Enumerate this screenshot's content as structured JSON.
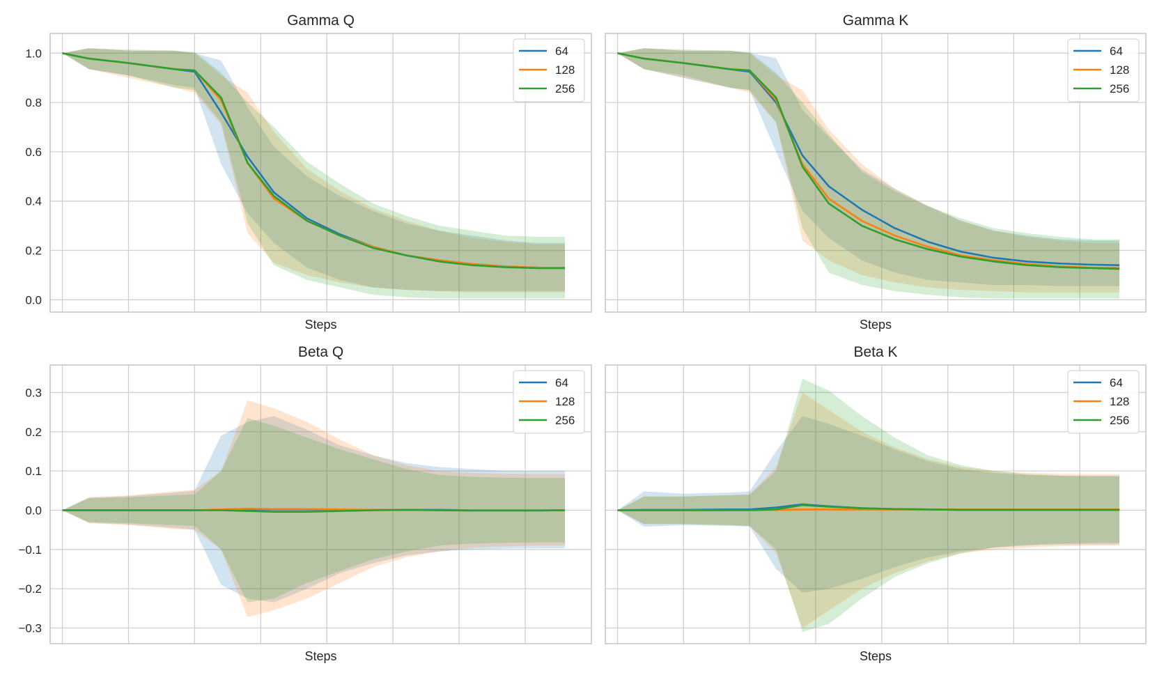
{
  "colors": {
    "s64": "#1f77b4",
    "s128": "#ff7f0e",
    "s256": "#2ca02c",
    "grid": "#d0d0d0",
    "frame": "#c4c4c4"
  },
  "chart_data": [
    {
      "type": "line",
      "title": "Gamma Q",
      "xlabel": "Steps",
      "ylabel": "",
      "ylim": [
        -0.05,
        1.08
      ],
      "yticks": [
        0.0,
        0.2,
        0.4,
        0.6,
        0.8,
        1.0
      ],
      "ytick_labels": [
        "0.0",
        "0.2",
        "0.4",
        "0.6",
        "0.8",
        "1.0"
      ],
      "xlim": [
        -0.37,
        16.0
      ],
      "x": [
        0,
        0.8,
        2,
        3.4,
        4,
        4.8,
        5.6,
        6.4,
        7.4,
        8.4,
        9.4,
        10.4,
        11.4,
        12.4,
        13.4,
        14.4,
        15.2
      ],
      "legend": [
        "64",
        "128",
        "256"
      ],
      "legend_position": "top-right",
      "series": [
        {
          "name": "64",
          "values": [
            1.0,
            0.978,
            0.96,
            0.935,
            0.925,
            0.76,
            0.58,
            0.435,
            0.33,
            0.265,
            0.215,
            0.18,
            0.16,
            0.145,
            0.135,
            0.13,
            0.13
          ],
          "upper": [
            1.0,
            1.02,
            1.01,
            1.01,
            1.0,
            0.97,
            0.78,
            0.62,
            0.5,
            0.42,
            0.36,
            0.31,
            0.28,
            0.26,
            0.24,
            0.23,
            0.23
          ],
          "lower": [
            1.0,
            0.935,
            0.91,
            0.87,
            0.86,
            0.55,
            0.35,
            0.23,
            0.13,
            0.08,
            0.05,
            0.04,
            0.035,
            0.035,
            0.035,
            0.035,
            0.035
          ]
        },
        {
          "name": "128",
          "values": [
            1.0,
            0.978,
            0.96,
            0.935,
            0.93,
            0.81,
            0.555,
            0.41,
            0.32,
            0.26,
            0.215,
            0.18,
            0.16,
            0.145,
            0.135,
            0.13,
            0.13
          ],
          "upper": [
            1.0,
            1.02,
            1.01,
            1.01,
            1.0,
            0.91,
            0.84,
            0.68,
            0.53,
            0.44,
            0.37,
            0.32,
            0.28,
            0.25,
            0.235,
            0.225,
            0.225
          ],
          "lower": [
            1.0,
            0.935,
            0.9,
            0.86,
            0.84,
            0.71,
            0.27,
            0.15,
            0.1,
            0.07,
            0.05,
            0.04,
            0.035,
            0.03,
            0.03,
            0.03,
            0.03
          ]
        },
        {
          "name": "256",
          "values": [
            1.0,
            0.978,
            0.96,
            0.935,
            0.93,
            0.82,
            0.555,
            0.42,
            0.32,
            0.26,
            0.21,
            0.18,
            0.155,
            0.14,
            0.132,
            0.128,
            0.128
          ],
          "upper": [
            1.0,
            1.02,
            1.015,
            1.01,
            1.005,
            0.92,
            0.8,
            0.7,
            0.56,
            0.47,
            0.39,
            0.34,
            0.3,
            0.28,
            0.26,
            0.255,
            0.255
          ],
          "lower": [
            1.0,
            0.935,
            0.91,
            0.86,
            0.85,
            0.72,
            0.31,
            0.14,
            0.08,
            0.05,
            0.02,
            0.01,
            0.005,
            0.005,
            0.005,
            0.005,
            0.005
          ]
        }
      ]
    },
    {
      "type": "line",
      "title": "Gamma K",
      "xlabel": "Steps",
      "ylabel": "",
      "ylim": [
        -0.05,
        1.08
      ],
      "yticks": [
        0.0,
        0.2,
        0.4,
        0.6,
        0.8,
        1.0
      ],
      "ytick_labels": [
        "0.0",
        "0.2",
        "0.4",
        "0.6",
        "0.8",
        "1.0"
      ],
      "xlim": [
        -0.37,
        16.0
      ],
      "x": [
        0,
        0.8,
        2,
        3.4,
        4,
        4.8,
        5.6,
        6.4,
        7.4,
        8.4,
        9.4,
        10.4,
        11.4,
        12.4,
        13.4,
        14.4,
        15.2
      ],
      "legend": [
        "64",
        "128",
        "256"
      ],
      "legend_position": "top-right",
      "series": [
        {
          "name": "64",
          "values": [
            1.0,
            0.978,
            0.96,
            0.935,
            0.925,
            0.8,
            0.585,
            0.46,
            0.365,
            0.29,
            0.235,
            0.195,
            0.17,
            0.155,
            0.147,
            0.142,
            0.14
          ],
          "upper": [
            1.0,
            1.02,
            1.01,
            1.01,
            1.0,
            0.98,
            0.77,
            0.66,
            0.53,
            0.45,
            0.38,
            0.32,
            0.28,
            0.26,
            0.245,
            0.24,
            0.24
          ],
          "lower": [
            1.0,
            0.935,
            0.9,
            0.86,
            0.85,
            0.6,
            0.36,
            0.25,
            0.16,
            0.11,
            0.08,
            0.07,
            0.06,
            0.06,
            0.055,
            0.055,
            0.055
          ]
        },
        {
          "name": "128",
          "values": [
            1.0,
            0.978,
            0.96,
            0.935,
            0.93,
            0.81,
            0.55,
            0.41,
            0.32,
            0.26,
            0.215,
            0.18,
            0.16,
            0.145,
            0.135,
            0.13,
            0.13
          ],
          "upper": [
            1.0,
            1.02,
            1.01,
            1.01,
            1.0,
            0.91,
            0.85,
            0.69,
            0.55,
            0.45,
            0.38,
            0.32,
            0.28,
            0.255,
            0.24,
            0.23,
            0.23
          ],
          "lower": [
            1.0,
            0.935,
            0.9,
            0.86,
            0.84,
            0.72,
            0.24,
            0.16,
            0.1,
            0.07,
            0.05,
            0.04,
            0.035,
            0.03,
            0.03,
            0.03,
            0.03
          ]
        },
        {
          "name": "256",
          "values": [
            1.0,
            0.978,
            0.96,
            0.935,
            0.93,
            0.82,
            0.54,
            0.39,
            0.3,
            0.245,
            0.205,
            0.175,
            0.155,
            0.14,
            0.132,
            0.128,
            0.125
          ],
          "upper": [
            1.0,
            1.02,
            1.015,
            1.01,
            1.005,
            0.92,
            0.8,
            0.67,
            0.52,
            0.44,
            0.38,
            0.33,
            0.29,
            0.27,
            0.255,
            0.245,
            0.245
          ],
          "lower": [
            1.0,
            0.935,
            0.91,
            0.86,
            0.85,
            0.72,
            0.29,
            0.11,
            0.06,
            0.035,
            0.02,
            0.01,
            0.005,
            0.005,
            0.005,
            0.005,
            0.005
          ]
        }
      ]
    },
    {
      "type": "line",
      "title": "Beta Q",
      "xlabel": "Steps",
      "ylabel": "",
      "ylim": [
        -0.34,
        0.37
      ],
      "yticks": [
        -0.3,
        -0.2,
        -0.1,
        0.0,
        0.1,
        0.2,
        0.3
      ],
      "ytick_labels": [
        "−0.3",
        "−0.2",
        "−0.1",
        "0.0",
        "0.1",
        "0.2",
        "0.3"
      ],
      "xlim": [
        -0.37,
        16.0
      ],
      "x": [
        0,
        0.8,
        2,
        3.4,
        4,
        4.8,
        5.6,
        6.4,
        7.4,
        8.4,
        9.4,
        10.4,
        11.4,
        12.4,
        13.4,
        14.4,
        15.2
      ],
      "legend": [
        "64",
        "128",
        "256"
      ],
      "legend_position": "top-right",
      "series": [
        {
          "name": "64",
          "values": [
            0.0,
            0.0,
            0.0,
            0.0,
            0.0,
            0.001,
            0.002,
            0.002,
            0.002,
            0.001,
            0.001,
            0.001,
            0.001,
            0.0,
            0.0,
            0.0,
            0.0
          ],
          "upper": [
            0.0,
            0.032,
            0.036,
            0.045,
            0.05,
            0.19,
            0.225,
            0.24,
            0.205,
            0.165,
            0.14,
            0.12,
            0.11,
            0.105,
            0.1,
            0.1,
            0.1
          ],
          "lower": [
            0.0,
            -0.032,
            -0.036,
            -0.045,
            -0.05,
            -0.19,
            -0.225,
            -0.235,
            -0.2,
            -0.16,
            -0.135,
            -0.115,
            -0.105,
            -0.1,
            -0.098,
            -0.097,
            -0.097
          ]
        },
        {
          "name": "128",
          "values": [
            0.0,
            0.0,
            0.0,
            0.0,
            0.0,
            0.002,
            0.004,
            0.003,
            0.003,
            0.002,
            0.001,
            0.001,
            0.0,
            0.0,
            0.0,
            0.0,
            0.0
          ],
          "upper": [
            0.0,
            0.033,
            0.038,
            0.048,
            0.052,
            0.1,
            0.28,
            0.26,
            0.225,
            0.18,
            0.14,
            0.115,
            0.1,
            0.095,
            0.093,
            0.092,
            0.092
          ],
          "lower": [
            0.0,
            -0.033,
            -0.038,
            -0.048,
            -0.05,
            -0.1,
            -0.272,
            -0.255,
            -0.225,
            -0.185,
            -0.145,
            -0.12,
            -0.105,
            -0.095,
            -0.092,
            -0.09,
            -0.09
          ]
        },
        {
          "name": "256",
          "values": [
            0.0,
            0.0,
            0.0,
            0.0,
            0.0,
            0.0,
            -0.002,
            -0.004,
            -0.004,
            -0.002,
            0.0,
            0.001,
            0.0,
            -0.001,
            -0.001,
            -0.001,
            0.0
          ],
          "upper": [
            0.0,
            0.03,
            0.033,
            0.038,
            0.04,
            0.1,
            0.235,
            0.215,
            0.185,
            0.155,
            0.13,
            0.105,
            0.09,
            0.085,
            0.083,
            0.082,
            0.082
          ],
          "lower": [
            0.0,
            -0.03,
            -0.033,
            -0.038,
            -0.04,
            -0.1,
            -0.235,
            -0.225,
            -0.185,
            -0.155,
            -0.125,
            -0.105,
            -0.09,
            -0.085,
            -0.083,
            -0.082,
            -0.082
          ]
        }
      ]
    },
    {
      "type": "line",
      "title": "Beta K",
      "xlabel": "Steps",
      "ylabel": "",
      "ylim": [
        -0.34,
        0.37
      ],
      "yticks": [
        -0.3,
        -0.2,
        -0.1,
        0.0,
        0.1,
        0.2,
        0.3
      ],
      "ytick_labels": [
        "−0.3",
        "−0.2",
        "−0.1",
        "0.0",
        "0.1",
        "0.2",
        "0.3"
      ],
      "xlim": [
        -0.37,
        16.0
      ],
      "x": [
        0,
        0.8,
        2,
        3.4,
        4,
        4.8,
        5.6,
        6.4,
        7.4,
        8.4,
        9.4,
        10.4,
        11.4,
        12.4,
        13.4,
        14.4,
        15.2
      ],
      "legend": [
        "64",
        "128",
        "256"
      ],
      "legend_position": "top-right",
      "series": [
        {
          "name": "64",
          "values": [
            0.0,
            0.001,
            0.001,
            0.002,
            0.002,
            0.007,
            0.015,
            0.01,
            0.005,
            0.003,
            0.002,
            0.001,
            0.001,
            0.001,
            0.001,
            0.001,
            0.001
          ],
          "upper": [
            0.0,
            0.048,
            0.042,
            0.045,
            0.048,
            0.15,
            0.24,
            0.22,
            0.19,
            0.155,
            0.125,
            0.105,
            0.095,
            0.09,
            0.088,
            0.088,
            0.088
          ],
          "lower": [
            0.0,
            -0.042,
            -0.038,
            -0.04,
            -0.042,
            -0.15,
            -0.21,
            -0.2,
            -0.175,
            -0.145,
            -0.12,
            -0.105,
            -0.095,
            -0.09,
            -0.088,
            -0.087,
            -0.087
          ]
        },
        {
          "name": "128",
          "values": [
            0.0,
            0.0,
            0.0,
            0.0,
            0.0,
            0.001,
            0.002,
            0.002,
            0.002,
            0.002,
            0.002,
            0.002,
            0.002,
            0.002,
            0.002,
            0.002,
            0.002
          ],
          "upper": [
            0.0,
            0.035,
            0.035,
            0.038,
            0.04,
            0.11,
            0.3,
            0.255,
            0.2,
            0.16,
            0.13,
            0.11,
            0.1,
            0.095,
            0.093,
            0.092,
            0.092
          ],
          "lower": [
            0.0,
            -0.035,
            -0.035,
            -0.038,
            -0.04,
            -0.11,
            -0.3,
            -0.255,
            -0.2,
            -0.16,
            -0.13,
            -0.11,
            -0.1,
            -0.095,
            -0.092,
            -0.09,
            -0.09
          ]
        },
        {
          "name": "256",
          "values": [
            0.0,
            0.0,
            0.0,
            0.0,
            0.0,
            0.002,
            0.013,
            0.009,
            0.005,
            0.003,
            0.002,
            0.001,
            0.001,
            0.001,
            0.001,
            0.001,
            0.001
          ],
          "upper": [
            0.0,
            0.035,
            0.035,
            0.038,
            0.04,
            0.1,
            0.335,
            0.305,
            0.24,
            0.185,
            0.14,
            0.115,
            0.1,
            0.092,
            0.088,
            0.086,
            0.086
          ],
          "lower": [
            0.0,
            -0.035,
            -0.035,
            -0.038,
            -0.04,
            -0.1,
            -0.31,
            -0.29,
            -0.225,
            -0.17,
            -0.135,
            -0.11,
            -0.095,
            -0.088,
            -0.085,
            -0.083,
            -0.083
          ]
        }
      ]
    }
  ]
}
